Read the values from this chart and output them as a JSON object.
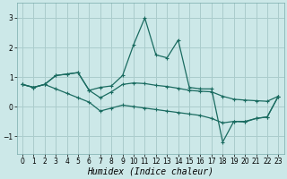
{
  "title": "",
  "xlabel": "Humidex (Indice chaleur)",
  "ylabel": "",
  "bg_color": "#cce8e8",
  "grid_color": "#aacccc",
  "line_color": "#1a6b60",
  "xlim": [
    -0.5,
    23.5
  ],
  "ylim": [
    -1.6,
    3.5
  ],
  "yticks": [
    -1,
    0,
    1,
    2,
    3
  ],
  "xticks": [
    0,
    1,
    2,
    3,
    4,
    5,
    6,
    7,
    8,
    9,
    10,
    11,
    12,
    13,
    14,
    15,
    16,
    17,
    18,
    19,
    20,
    21,
    22,
    23
  ],
  "series1_x": [
    0,
    1,
    2,
    3,
    4,
    5,
    6,
    7,
    8,
    9,
    10,
    11,
    12,
    13,
    14,
    15,
    16,
    17,
    18,
    19,
    20,
    21,
    22,
    23
  ],
  "series1_y": [
    0.75,
    0.65,
    0.75,
    1.05,
    1.1,
    1.15,
    0.55,
    0.65,
    0.7,
    1.05,
    2.1,
    3.0,
    1.75,
    1.65,
    2.25,
    0.65,
    0.6,
    0.6,
    -1.2,
    -0.5,
    -0.5,
    -0.4,
    -0.35,
    0.35
  ],
  "series2_x": [
    0,
    1,
    2,
    3,
    4,
    5,
    6,
    7,
    8,
    9,
    10,
    11,
    12,
    13,
    14,
    15,
    16,
    17,
    18,
    19,
    20,
    21,
    22,
    23
  ],
  "series2_y": [
    0.75,
    0.65,
    0.75,
    1.05,
    1.1,
    1.15,
    0.55,
    0.3,
    0.5,
    0.75,
    0.8,
    0.78,
    0.72,
    0.68,
    0.62,
    0.55,
    0.52,
    0.5,
    0.35,
    0.25,
    0.22,
    0.2,
    0.18,
    0.35
  ],
  "series3_x": [
    0,
    1,
    2,
    3,
    4,
    5,
    6,
    7,
    8,
    9,
    10,
    11,
    12,
    13,
    14,
    15,
    16,
    17,
    18,
    19,
    20,
    21,
    22,
    23
  ],
  "series3_y": [
    0.75,
    0.65,
    0.75,
    0.6,
    0.45,
    0.3,
    0.15,
    -0.15,
    -0.05,
    0.05,
    0.0,
    -0.05,
    -0.1,
    -0.15,
    -0.2,
    -0.25,
    -0.3,
    -0.4,
    -0.55,
    -0.5,
    -0.52,
    -0.4,
    -0.35,
    0.35
  ],
  "xlabel_fontsize": 7,
  "tick_fontsize": 5.5,
  "linewidth": 0.9,
  "markersize": 2.5
}
